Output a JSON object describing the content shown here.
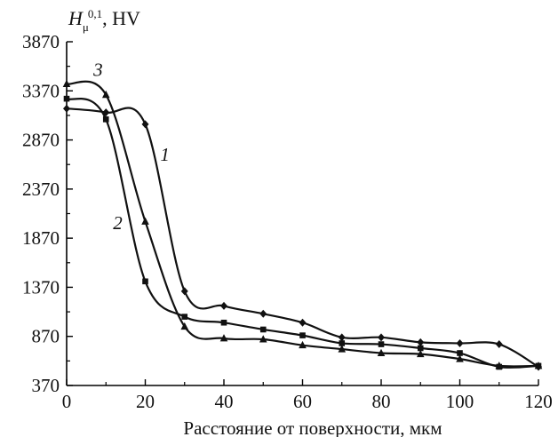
{
  "chart_data": {
    "type": "line",
    "ylabel": {
      "symbol": "H",
      "subscript": "μ",
      "superscript": "0,1",
      "unit": ", HV"
    },
    "xlabel": "Расстояние от поверхности, мкм",
    "xlim": [
      0,
      120
    ],
    "ylim": [
      370,
      3870
    ],
    "xticks": [
      "0",
      "20",
      "40",
      "60",
      "80",
      "100",
      "120"
    ],
    "yticks": [
      "370",
      "870",
      "1370",
      "1870",
      "2370",
      "2870",
      "3370",
      "3870"
    ],
    "x_tick_values": [
      0,
      20,
      40,
      60,
      80,
      100,
      120
    ],
    "y_tick_values": [
      370,
      870,
      1370,
      1870,
      2370,
      2870,
      3370,
      3870
    ],
    "grid": false,
    "series": [
      {
        "name": "1",
        "marker": "diamond",
        "x": [
          0,
          10,
          20,
          30,
          40,
          50,
          60,
          70,
          80,
          90,
          100,
          110,
          120
        ],
        "y": [
          3190,
          3150,
          3030,
          1330,
          1180,
          1100,
          1010,
          860,
          860,
          810,
          800,
          790,
          560
        ]
      },
      {
        "name": "2",
        "marker": "square",
        "x": [
          0,
          10,
          20,
          30,
          40,
          50,
          60,
          70,
          80,
          90,
          100,
          110,
          120
        ],
        "y": [
          3290,
          3080,
          1430,
          1070,
          1010,
          940,
          880,
          800,
          790,
          750,
          700,
          560,
          570
        ]
      },
      {
        "name": "3",
        "marker": "triangle",
        "x": [
          0,
          10,
          20,
          30,
          40,
          50,
          60,
          70,
          80,
          90,
          100,
          110,
          120
        ],
        "y": [
          3440,
          3330,
          2040,
          970,
          850,
          840,
          780,
          740,
          700,
          690,
          640,
          570,
          570
        ]
      }
    ],
    "curve_labels": [
      {
        "text": "1",
        "x": 25,
        "y": 2660
      },
      {
        "text": "2",
        "x": 13,
        "y": 1960
      },
      {
        "text": "3",
        "x": 8,
        "y": 3520
      }
    ]
  }
}
